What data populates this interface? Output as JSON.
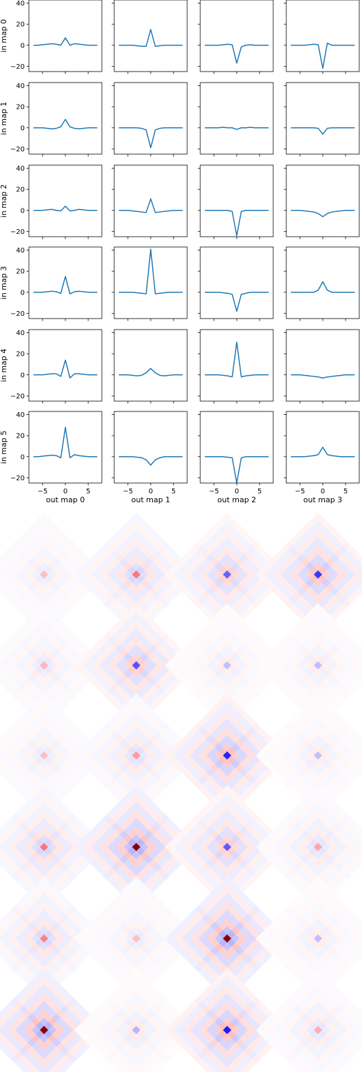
{
  "chart_data": [
    {
      "type": "line",
      "grid": false,
      "xlim": [
        -8,
        8
      ],
      "ylim": [
        -25,
        43
      ],
      "xticks": [
        -5,
        0,
        5
      ],
      "yticks": [
        -20,
        0,
        20,
        40
      ],
      "row_labels": [
        "in map 0",
        "in map 1",
        "in map 2",
        "in map 3",
        "in map 4",
        "in map 5"
      ],
      "col_labels": [
        "out map 0",
        "out map 1",
        "out map 2",
        "out map 3"
      ],
      "x": [
        -7,
        -6,
        -5,
        -4,
        -3,
        -2,
        -1,
        0,
        1,
        2,
        3,
        4,
        5,
        6,
        7
      ],
      "line_color": "#1f77b4",
      "panels": [
        [
          [
            0,
            0,
            0.5,
            1,
            1.5,
            1,
            0,
            7,
            0,
            1.5,
            1,
            0.5,
            0,
            0,
            0
          ],
          [
            0,
            0,
            0,
            0,
            -0.5,
            -1,
            -1,
            15,
            -1,
            -0.5,
            0,
            0,
            0,
            0,
            0
          ],
          [
            0,
            0,
            0,
            0,
            0.5,
            1,
            0.5,
            -17,
            -1.5,
            0,
            0.5,
            0,
            0,
            0,
            0
          ],
          [
            0,
            0,
            0,
            0,
            0.5,
            1,
            0.5,
            -22,
            2,
            0,
            0,
            0,
            0,
            0,
            0
          ]
        ],
        [
          [
            0,
            0,
            0,
            -0.5,
            -1,
            -0.5,
            1,
            8,
            1,
            -0.5,
            -1,
            -0.5,
            0,
            0,
            0
          ],
          [
            0,
            0,
            0,
            0,
            0,
            -0.5,
            -2,
            -19,
            -2,
            -0.5,
            0,
            0,
            0,
            0,
            0
          ],
          [
            0,
            0,
            0,
            0,
            0.5,
            0,
            0,
            -1.5,
            0,
            0,
            0.5,
            0,
            0,
            0,
            0
          ],
          [
            0,
            0,
            0,
            0,
            0,
            0,
            -0.5,
            -6,
            -0.5,
            0,
            0,
            0,
            0,
            0,
            0
          ]
        ],
        [
          [
            0,
            0,
            0,
            0.5,
            1,
            0,
            -0.5,
            4,
            -0.5,
            0,
            1,
            0.5,
            0,
            0,
            0
          ],
          [
            0,
            0,
            0,
            -0.5,
            -1,
            -1.5,
            -2,
            11,
            -2,
            -1.5,
            -1,
            -0.5,
            0,
            0,
            0
          ],
          [
            0,
            0,
            0,
            0,
            0,
            0,
            -1,
            -24,
            -1,
            0,
            0,
            0,
            0,
            0,
            0
          ],
          [
            0,
            0,
            0,
            -0.5,
            -1,
            -1.5,
            -3,
            -6,
            -3,
            -1.5,
            -1,
            -0.5,
            0,
            0,
            0
          ]
        ],
        [
          [
            0,
            0,
            0,
            0.5,
            1,
            0.5,
            -1,
            15,
            -1.5,
            0.5,
            1,
            0.5,
            0,
            0,
            0
          ],
          [
            0,
            0,
            0,
            0,
            -0.5,
            -1,
            -1.5,
            41,
            -1.5,
            -1,
            -0.5,
            0,
            0,
            0,
            0
          ],
          [
            0,
            0,
            0,
            0,
            -0.5,
            -1,
            -2,
            -18,
            -2,
            -1,
            0,
            0,
            0,
            0,
            0
          ],
          [
            0,
            0,
            0,
            0,
            0,
            0,
            2,
            10,
            2,
            0,
            0,
            0,
            0,
            0,
            0
          ]
        ],
        [
          [
            0,
            0,
            0,
            0.5,
            1,
            1,
            -1.5,
            14,
            -3,
            1,
            1,
            0.5,
            0,
            0,
            0
          ],
          [
            0,
            0,
            0,
            -0.5,
            -1,
            -0.5,
            2,
            6,
            2,
            -0.5,
            -1,
            -0.5,
            0,
            0,
            0
          ],
          [
            0,
            0,
            0,
            0,
            -0.5,
            -1,
            -2,
            31,
            -2,
            -1,
            -0.5,
            0,
            0,
            0,
            0
          ],
          [
            0,
            0,
            0,
            -0.5,
            -1,
            -1.5,
            -2,
            -3,
            -2,
            -1.5,
            -1,
            -0.5,
            0,
            0,
            0
          ]
        ],
        [
          [
            0,
            0,
            0.5,
            1,
            1.5,
            1,
            -1,
            28,
            -1,
            2,
            1,
            0.5,
            0,
            0,
            0
          ],
          [
            0,
            0,
            0,
            0,
            -0.5,
            -1,
            -3,
            -8,
            -3,
            -1,
            0,
            0,
            0,
            0,
            0
          ],
          [
            0,
            0,
            0,
            0,
            0,
            -0.5,
            -1,
            -25,
            -1,
            0,
            0,
            0,
            0,
            0,
            0
          ],
          [
            0,
            0,
            0,
            0,
            0.5,
            1,
            2,
            9,
            2,
            1,
            0.5,
            0,
            0,
            0,
            0
          ]
        ]
      ]
    },
    {
      "type": "heatmap",
      "grid": false,
      "colormap": "bwr",
      "colors": {
        "negative": "#0000ff",
        "zero": "#ffffff",
        "positive": "#ff0000",
        "peak_positive": "#8b0000"
      },
      "note_axes": "off"
    }
  ]
}
